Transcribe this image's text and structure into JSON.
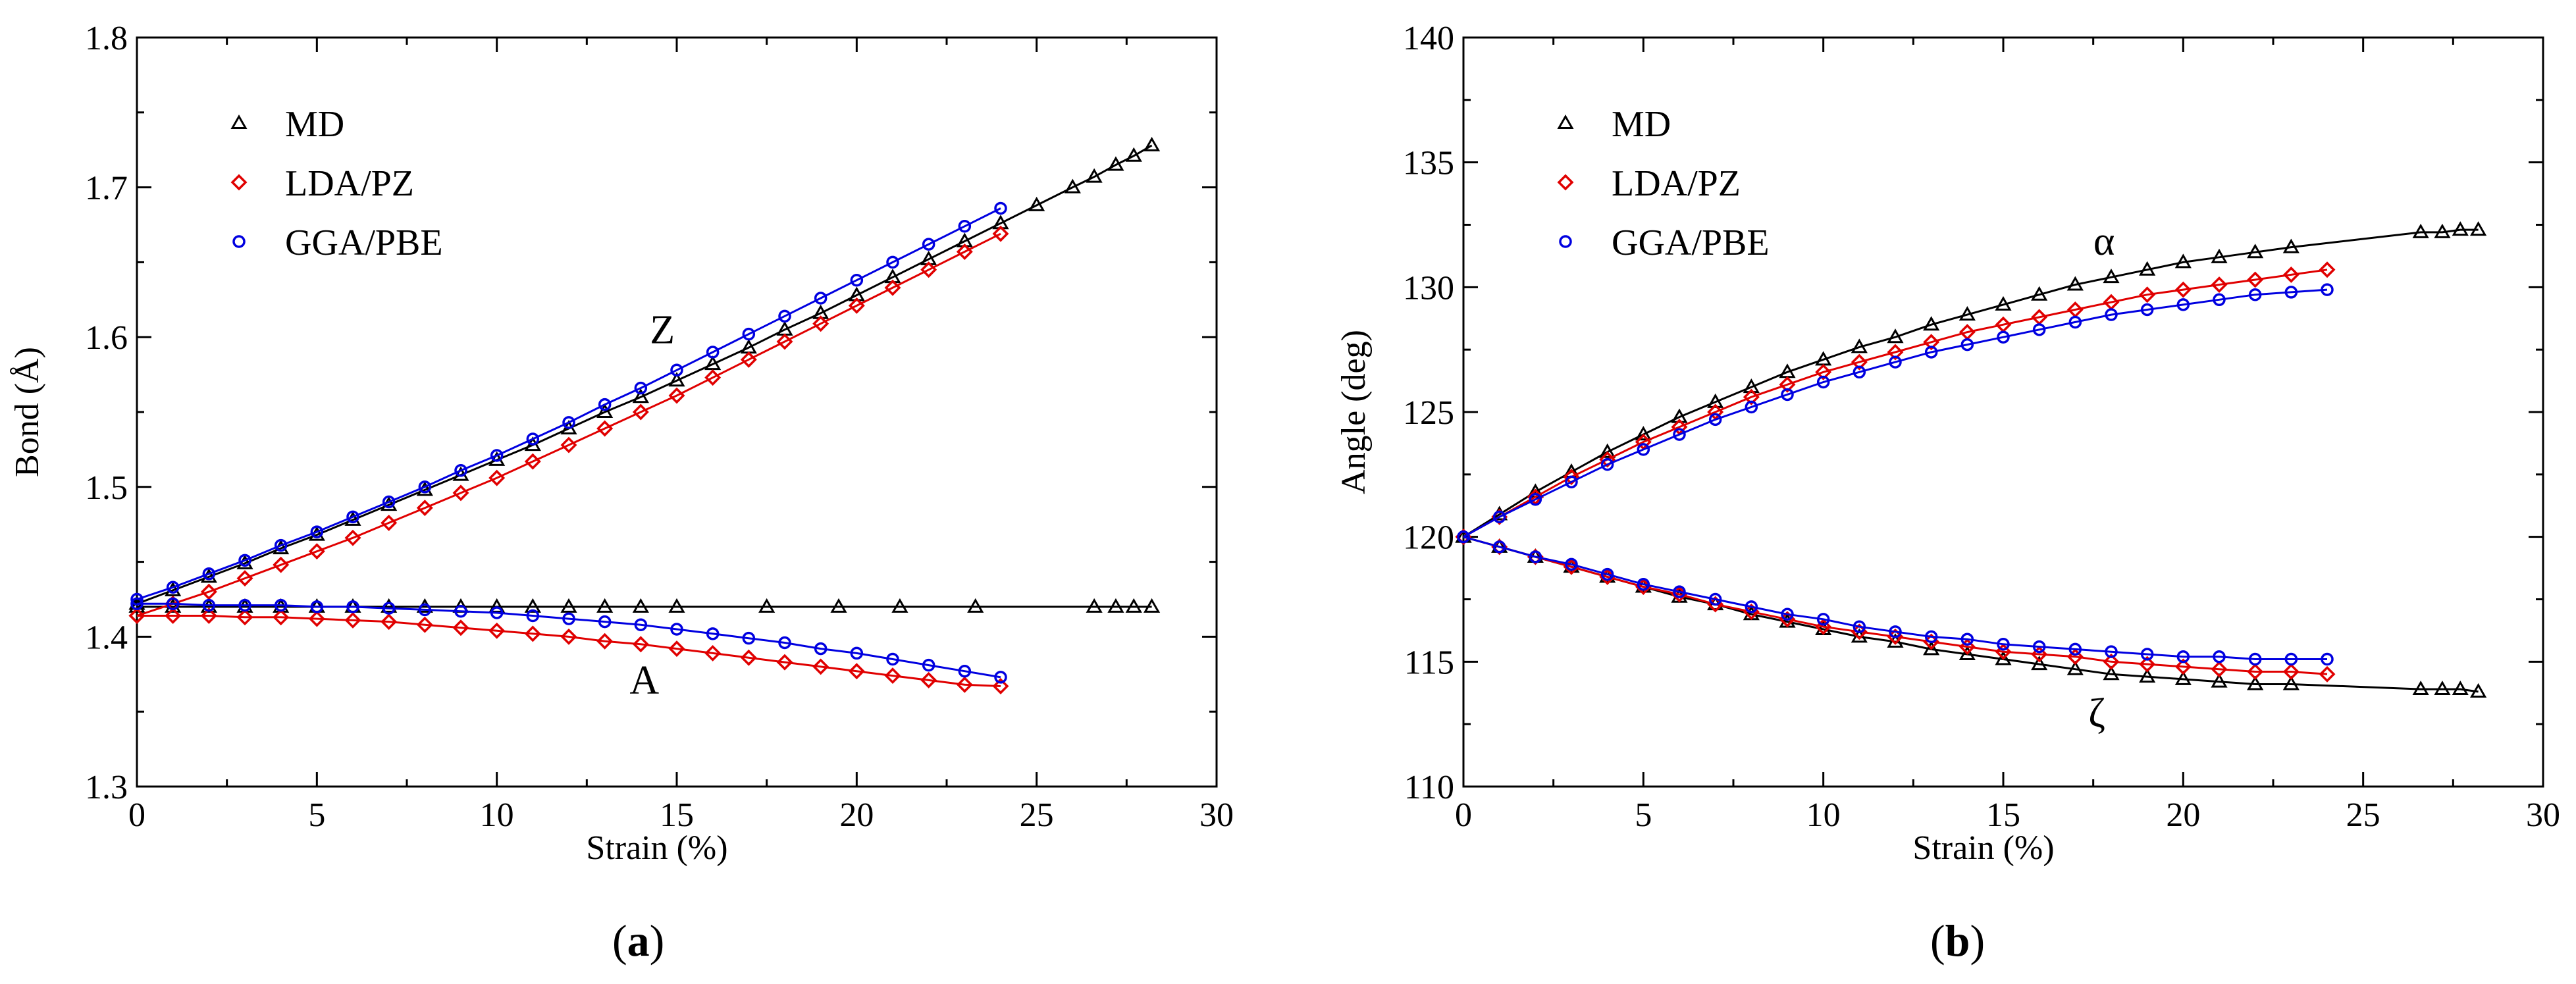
{
  "panels": [
    {
      "caption_open": "(",
      "caption_letter": "a",
      "caption_close": ")"
    },
    {
      "caption_open": "(",
      "caption_letter": "b",
      "caption_close": ")"
    }
  ],
  "colors": {
    "MD": "#000000",
    "LDA/PZ": "#e00000",
    "GGA/PBE": "#0000e0"
  },
  "chart_data": [
    {
      "type": "scatter",
      "title": "",
      "xlabel": "Strain (%)",
      "ylabel": "Bond (Å)",
      "xlim": [
        0,
        30
      ],
      "ylim": [
        1.3,
        1.8
      ],
      "xticks": [
        "0",
        "5",
        "10",
        "15",
        "20",
        "25",
        "30"
      ],
      "yticks": [
        "1.3",
        "1.4",
        "1.5",
        "1.6",
        "1.7",
        "1.8"
      ],
      "legend": {
        "position": "top-left",
        "entries": [
          "MD",
          "LDA/PZ",
          "GGA/PBE"
        ]
      },
      "annotations": [
        {
          "text": "Z",
          "x": 14.6,
          "y": 1.596
        },
        {
          "text": "A",
          "x": 14.1,
          "y": 1.362
        }
      ],
      "series": [
        {
          "name": "MD",
          "marker": "triangle",
          "branch": "Z",
          "x": [
            0,
            1,
            2,
            3,
            4,
            5,
            6,
            7,
            8,
            9,
            10,
            11,
            12,
            13,
            14,
            15,
            16,
            17,
            18,
            19,
            20,
            21,
            22,
            23,
            24,
            25,
            26,
            26.6,
            27.2,
            27.7,
            28.2
          ],
          "values": [
            1.422,
            1.431,
            1.44,
            1.449,
            1.459,
            1.468,
            1.478,
            1.488,
            1.498,
            1.508,
            1.518,
            1.528,
            1.539,
            1.55,
            1.56,
            1.571,
            1.582,
            1.593,
            1.605,
            1.616,
            1.628,
            1.64,
            1.652,
            1.664,
            1.676,
            1.688,
            1.7,
            1.707,
            1.715,
            1.721,
            1.728
          ]
        },
        {
          "name": "MD",
          "marker": "triangle",
          "branch": "A",
          "x": [
            0,
            1,
            2,
            3,
            4,
            5,
            6,
            7,
            8,
            9,
            10,
            11,
            12,
            13,
            14,
            15,
            17.5,
            19.5,
            21.2,
            23.3,
            26.6,
            27.2,
            27.7,
            28.2
          ],
          "values": [
            1.42,
            1.42,
            1.42,
            1.42,
            1.42,
            1.42,
            1.42,
            1.42,
            1.42,
            1.42,
            1.42,
            1.42,
            1.42,
            1.42,
            1.42,
            1.42,
            1.42,
            1.42,
            1.42,
            1.42,
            1.42,
            1.42,
            1.42,
            1.42
          ]
        },
        {
          "name": "LDA/PZ",
          "marker": "diamond",
          "branch": "Z",
          "x": [
            0,
            1,
            2,
            3,
            4,
            5,
            6,
            7,
            8,
            9,
            10,
            11,
            12,
            13,
            14,
            15,
            16,
            17,
            18,
            19,
            20,
            21,
            22,
            23,
            24
          ],
          "values": [
            1.414,
            1.422,
            1.43,
            1.439,
            1.448,
            1.457,
            1.466,
            1.476,
            1.486,
            1.496,
            1.506,
            1.517,
            1.528,
            1.539,
            1.55,
            1.561,
            1.573,
            1.585,
            1.597,
            1.609,
            1.621,
            1.633,
            1.645,
            1.657,
            1.669
          ]
        },
        {
          "name": "LDA/PZ",
          "marker": "diamond",
          "branch": "A",
          "x": [
            0,
            1,
            2,
            3,
            4,
            5,
            6,
            7,
            8,
            9,
            10,
            11,
            12,
            13,
            14,
            15,
            16,
            17,
            18,
            19,
            20,
            21,
            22,
            23,
            24
          ],
          "values": [
            1.414,
            1.414,
            1.414,
            1.413,
            1.413,
            1.412,
            1.411,
            1.41,
            1.408,
            1.406,
            1.404,
            1.402,
            1.4,
            1.397,
            1.395,
            1.392,
            1.389,
            1.386,
            1.383,
            1.38,
            1.377,
            1.374,
            1.371,
            1.368,
            1.367
          ]
        },
        {
          "name": "GGA/PBE",
          "marker": "circle",
          "branch": "Z",
          "x": [
            0,
            1,
            2,
            3,
            4,
            5,
            6,
            7,
            8,
            9,
            10,
            11,
            12,
            13,
            14,
            15,
            16,
            17,
            18,
            19,
            20,
            21,
            22,
            23,
            24
          ],
          "values": [
            1.425,
            1.433,
            1.442,
            1.451,
            1.461,
            1.47,
            1.48,
            1.49,
            1.5,
            1.511,
            1.521,
            1.532,
            1.543,
            1.555,
            1.566,
            1.578,
            1.59,
            1.602,
            1.614,
            1.626,
            1.638,
            1.65,
            1.662,
            1.674,
            1.686
          ]
        },
        {
          "name": "GGA/PBE",
          "marker": "circle",
          "branch": "A",
          "x": [
            0,
            1,
            2,
            3,
            4,
            5,
            6,
            7,
            8,
            9,
            10,
            11,
            12,
            13,
            14,
            15,
            16,
            17,
            18,
            19,
            20,
            21,
            22,
            23,
            24
          ],
          "values": [
            1.422,
            1.422,
            1.421,
            1.421,
            1.421,
            1.42,
            1.42,
            1.419,
            1.418,
            1.417,
            1.416,
            1.414,
            1.412,
            1.41,
            1.408,
            1.405,
            1.402,
            1.399,
            1.396,
            1.392,
            1.389,
            1.385,
            1.381,
            1.377,
            1.373
          ]
        }
      ]
    },
    {
      "type": "scatter",
      "title": "",
      "xlabel": "Strain (%)",
      "ylabel": "Angle (deg)",
      "xlim": [
        0,
        30
      ],
      "ylim": [
        110,
        140
      ],
      "xticks": [
        "0",
        "5",
        "10",
        "15",
        "20",
        "25",
        "30"
      ],
      "yticks": [
        "110",
        "115",
        "120",
        "125",
        "130",
        "135",
        "140"
      ],
      "legend": {
        "position": "top-left",
        "entries": [
          "MD",
          "LDA/PZ",
          "GGA/PBE"
        ]
      },
      "annotations": [
        {
          "text": "α",
          "x": 17.8,
          "y": 131.3
        },
        {
          "text": "ζ",
          "x": 17.6,
          "y": 112.4
        }
      ],
      "series": [
        {
          "name": "MD",
          "marker": "triangle",
          "branch": "α",
          "x": [
            0,
            1,
            2,
            3,
            4,
            5,
            6,
            7,
            8,
            9,
            10,
            11,
            12,
            13,
            14,
            15,
            16,
            17,
            18,
            19,
            20,
            21,
            22,
            23,
            26.6,
            27.2,
            27.7,
            28.2
          ],
          "values": [
            120.0,
            120.9,
            121.8,
            122.6,
            123.4,
            124.1,
            124.8,
            125.4,
            126.0,
            126.6,
            127.1,
            127.6,
            128.0,
            128.5,
            128.9,
            129.3,
            129.7,
            130.1,
            130.4,
            130.7,
            131.0,
            131.2,
            131.4,
            131.6,
            132.2,
            132.2,
            132.3,
            132.3
          ]
        },
        {
          "name": "MD",
          "marker": "triangle",
          "branch": "ζ",
          "x": [
            0,
            1,
            2,
            3,
            4,
            5,
            6,
            7,
            8,
            9,
            10,
            11,
            12,
            13,
            14,
            15,
            16,
            17,
            18,
            19,
            20,
            21,
            22,
            23,
            26.6,
            27.2,
            27.7,
            28.2
          ],
          "values": [
            120.0,
            119.6,
            119.2,
            118.8,
            118.4,
            118.0,
            117.6,
            117.3,
            116.9,
            116.6,
            116.3,
            116.0,
            115.8,
            115.5,
            115.3,
            115.1,
            114.9,
            114.7,
            114.5,
            114.4,
            114.3,
            114.2,
            114.1,
            114.1,
            113.9,
            113.9,
            113.9,
            113.8
          ]
        },
        {
          "name": "LDA/PZ",
          "marker": "diamond",
          "branch": "α",
          "x": [
            0,
            1,
            2,
            3,
            4,
            5,
            6,
            7,
            8,
            9,
            10,
            11,
            12,
            13,
            14,
            15,
            16,
            17,
            18,
            19,
            20,
            21,
            22,
            23,
            24
          ],
          "values": [
            120.0,
            120.8,
            121.6,
            122.4,
            123.1,
            123.8,
            124.4,
            125.0,
            125.6,
            126.1,
            126.6,
            127.0,
            127.4,
            127.8,
            128.2,
            128.5,
            128.8,
            129.1,
            129.4,
            129.7,
            129.9,
            130.1,
            130.3,
            130.5,
            130.7
          ]
        },
        {
          "name": "LDA/PZ",
          "marker": "diamond",
          "branch": "ζ",
          "x": [
            0,
            1,
            2,
            3,
            4,
            5,
            6,
            7,
            8,
            9,
            10,
            11,
            12,
            13,
            14,
            15,
            16,
            17,
            18,
            19,
            20,
            21,
            22,
            23,
            24
          ],
          "values": [
            120.0,
            119.6,
            119.2,
            118.8,
            118.4,
            118.0,
            117.7,
            117.3,
            117.0,
            116.7,
            116.4,
            116.2,
            116.0,
            115.8,
            115.6,
            115.4,
            115.3,
            115.2,
            115.0,
            114.9,
            114.8,
            114.7,
            114.6,
            114.6,
            114.5
          ]
        },
        {
          "name": "GGA/PBE",
          "marker": "circle",
          "branch": "α",
          "x": [
            0,
            1,
            2,
            3,
            4,
            5,
            6,
            7,
            8,
            9,
            10,
            11,
            12,
            13,
            14,
            15,
            16,
            17,
            18,
            19,
            20,
            21,
            22,
            23,
            24
          ],
          "values": [
            120.0,
            120.8,
            121.5,
            122.2,
            122.9,
            123.5,
            124.1,
            124.7,
            125.2,
            125.7,
            126.2,
            126.6,
            127.0,
            127.4,
            127.7,
            128.0,
            128.3,
            128.6,
            128.9,
            129.1,
            129.3,
            129.5,
            129.7,
            129.8,
            129.9
          ]
        },
        {
          "name": "GGA/PBE",
          "marker": "circle",
          "branch": "ζ",
          "x": [
            0,
            1,
            2,
            3,
            4,
            5,
            6,
            7,
            8,
            9,
            10,
            11,
            12,
            13,
            14,
            15,
            16,
            17,
            18,
            19,
            20,
            21,
            22,
            23,
            24
          ],
          "values": [
            120.0,
            119.6,
            119.2,
            118.9,
            118.5,
            118.1,
            117.8,
            117.5,
            117.2,
            116.9,
            116.7,
            116.4,
            116.2,
            116.0,
            115.9,
            115.7,
            115.6,
            115.5,
            115.4,
            115.3,
            115.2,
            115.2,
            115.1,
            115.1,
            115.1
          ]
        }
      ]
    }
  ]
}
